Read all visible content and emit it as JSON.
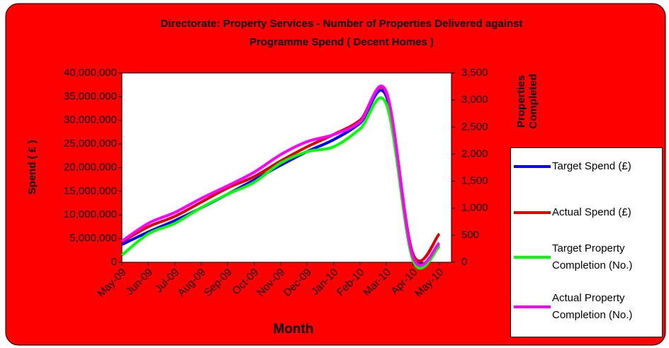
{
  "chart_data": {
    "type": "line",
    "title": [
      "Directorate: Property Services - Number of Properties Delivered against",
      "Programme Spend  ( Decent Homes )"
    ],
    "xlabel": "Month",
    "ylabel": "Spend  ( £ )",
    "y2label": [
      "Properties",
      "Completed"
    ],
    "categories": [
      "May-09",
      "Jun-09",
      "Jul-09",
      "Aug-09",
      "Sep-09",
      "Oct-09",
      "Nov-09",
      "Dec-09",
      "Jan-10",
      "Feb-10",
      "Mar-10",
      "Apr-10",
      "May-10"
    ],
    "series": [
      {
        "name": "Target Spend (£)",
        "color": "#0000ff",
        "values": [
          3750000,
          6400000,
          8800000,
          11500000,
          14400000,
          17400000,
          20500000,
          23400000,
          25900000,
          29400000,
          35000000,
          1500000,
          3500000
        ]
      },
      {
        "name": "Actual Spend (£)",
        "color": "#dd0000",
        "values": [
          4300000,
          7500000,
          9700000,
          12700000,
          15700000,
          18100000,
          21400000,
          24400000,
          27000000,
          30000000,
          35700000,
          1800000,
          6000000
        ]
      },
      {
        "name": "Target Property Completion (No.)",
        "color": "#00ff00",
        "axis": "y2",
        "values": [
          130,
          525,
          720,
          1010,
          1260,
          1480,
          1835,
          2045,
          2135,
          2465,
          2920,
          40,
          290
        ]
      },
      {
        "name": "Actual Property Completion (No.)",
        "color": "#ff00ff",
        "axis": "y2",
        "values": [
          390,
          720,
          920,
          1180,
          1415,
          1665,
          1990,
          2230,
          2360,
          2595,
          3145,
          105,
          355
        ]
      }
    ],
    "ylim": [
      0,
      40000000
    ],
    "yticks": [
      0,
      {
        "value": 5000000,
        "label": "5,000,000"
      },
      {
        "value": 10000000,
        "label": "10,000,000"
      },
      {
        "value": 15000000,
        "label": "15,000,000"
      },
      {
        "value": 20000000,
        "label": "20,000,000"
      },
      {
        "value": 25000000,
        "label": "25,000,000"
      },
      {
        "value": 30000000,
        "label": "30,000,000"
      },
      {
        "value": 35000000,
        "label": "35,000,000"
      },
      {
        "value": 40000000,
        "label": "40,000,000"
      }
    ],
    "y2lim": [
      0,
      3500
    ],
    "y2ticks": [
      0,
      500,
      {
        "value": 1000,
        "label": "1,000"
      },
      {
        "value": 1500,
        "label": "1,500"
      },
      {
        "value": 2000,
        "label": "2,000"
      },
      {
        "value": 2500,
        "label": "2,500"
      },
      {
        "value": 3000,
        "label": "3,000"
      },
      {
        "value": 3500,
        "label": "3,500"
      }
    ],
    "legend": "right",
    "grid": false
  }
}
